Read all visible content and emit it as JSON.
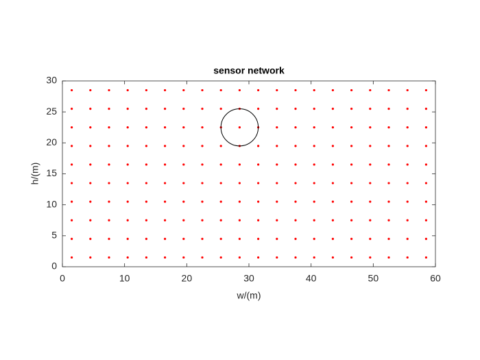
{
  "chart_data": {
    "type": "scatter",
    "title": "sensor network",
    "x_label": "w/(m)",
    "y_label": "h/(m)",
    "xlim": [
      0,
      60
    ],
    "xticks": [
      0,
      10,
      20,
      30,
      40,
      50,
      60
    ],
    "ylim": [
      0,
      30
    ],
    "yticks": [
      0,
      5,
      10,
      15,
      20,
      25,
      30
    ],
    "grid": false,
    "series": [
      {
        "color": "#ff0000",
        "x": [
          1.5,
          4.5,
          7.5,
          10.5,
          13.5,
          16.5,
          19.5,
          22.5,
          25.5,
          28.5,
          31.5,
          34.5,
          37.5,
          40.5,
          43.5,
          46.5,
          49.5,
          52.5,
          55.5,
          58.5,
          1.5,
          4.5,
          7.5,
          10.5,
          13.5,
          16.5,
          19.5,
          22.5,
          25.5,
          28.5,
          31.5,
          34.5,
          37.5,
          40.5,
          43.5,
          46.5,
          49.5,
          52.5,
          55.5,
          58.5,
          1.5,
          4.5,
          7.5,
          10.5,
          13.5,
          16.5,
          19.5,
          22.5,
          25.5,
          28.5,
          31.5,
          34.5,
          37.5,
          40.5,
          43.5,
          46.5,
          49.5,
          52.5,
          55.5,
          58.5,
          1.5,
          4.5,
          7.5,
          10.5,
          13.5,
          16.5,
          19.5,
          22.5,
          25.5,
          28.5,
          31.5,
          34.5,
          37.5,
          40.5,
          43.5,
          46.5,
          49.5,
          52.5,
          55.5,
          58.5,
          1.5,
          4.5,
          7.5,
          10.5,
          13.5,
          16.5,
          19.5,
          22.5,
          25.5,
          28.5,
          31.5,
          34.5,
          37.5,
          40.5,
          43.5,
          46.5,
          49.5,
          52.5,
          55.5,
          58.5,
          1.5,
          4.5,
          7.5,
          10.5,
          13.5,
          16.5,
          19.5,
          22.5,
          25.5,
          28.5,
          31.5,
          34.5,
          37.5,
          40.5,
          43.5,
          46.5,
          49.5,
          52.5,
          55.5,
          58.5,
          1.5,
          4.5,
          7.5,
          10.5,
          13.5,
          16.5,
          19.5,
          22.5,
          25.5,
          28.5,
          31.5,
          34.5,
          37.5,
          40.5,
          43.5,
          46.5,
          49.5,
          52.5,
          55.5,
          58.5,
          1.5,
          4.5,
          7.5,
          10.5,
          13.5,
          16.5,
          19.5,
          22.5,
          25.5,
          28.5,
          31.5,
          34.5,
          37.5,
          40.5,
          43.5,
          46.5,
          49.5,
          52.5,
          55.5,
          58.5,
          1.5,
          4.5,
          7.5,
          10.5,
          13.5,
          16.5,
          19.5,
          22.5,
          25.5,
          28.5,
          31.5,
          34.5,
          37.5,
          40.5,
          43.5,
          46.5,
          49.5,
          52.5,
          55.5,
          58.5,
          1.5,
          4.5,
          7.5,
          10.5,
          13.5,
          16.5,
          19.5,
          22.5,
          25.5,
          28.5,
          31.5,
          34.5,
          37.5,
          40.5,
          43.5,
          46.5,
          49.5,
          52.5,
          55.5,
          58.5
        ],
        "y": [
          1.5,
          1.5,
          1.5,
          1.5,
          1.5,
          1.5,
          1.5,
          1.5,
          1.5,
          1.5,
          1.5,
          1.5,
          1.5,
          1.5,
          1.5,
          1.5,
          1.5,
          1.5,
          1.5,
          1.5,
          4.5,
          4.5,
          4.5,
          4.5,
          4.5,
          4.5,
          4.5,
          4.5,
          4.5,
          4.5,
          4.5,
          4.5,
          4.5,
          4.5,
          4.5,
          4.5,
          4.5,
          4.5,
          4.5,
          4.5,
          7.5,
          7.5,
          7.5,
          7.5,
          7.5,
          7.5,
          7.5,
          7.5,
          7.5,
          7.5,
          7.5,
          7.5,
          7.5,
          7.5,
          7.5,
          7.5,
          7.5,
          7.5,
          7.5,
          7.5,
          10.5,
          10.5,
          10.5,
          10.5,
          10.5,
          10.5,
          10.5,
          10.5,
          10.5,
          10.5,
          10.5,
          10.5,
          10.5,
          10.5,
          10.5,
          10.5,
          10.5,
          10.5,
          10.5,
          10.5,
          13.5,
          13.5,
          13.5,
          13.5,
          13.5,
          13.5,
          13.5,
          13.5,
          13.5,
          13.5,
          13.5,
          13.5,
          13.5,
          13.5,
          13.5,
          13.5,
          13.5,
          13.5,
          13.5,
          13.5,
          16.5,
          16.5,
          16.5,
          16.5,
          16.5,
          16.5,
          16.5,
          16.5,
          16.5,
          16.5,
          16.5,
          16.5,
          16.5,
          16.5,
          16.5,
          16.5,
          16.5,
          16.5,
          16.5,
          16.5,
          19.5,
          19.5,
          19.5,
          19.5,
          19.5,
          19.5,
          19.5,
          19.5,
          19.5,
          19.5,
          19.5,
          19.5,
          19.5,
          19.5,
          19.5,
          19.5,
          19.5,
          19.5,
          19.5,
          19.5,
          22.5,
          22.5,
          22.5,
          22.5,
          22.5,
          22.5,
          22.5,
          22.5,
          22.5,
          22.5,
          22.5,
          22.5,
          22.5,
          22.5,
          22.5,
          22.5,
          22.5,
          22.5,
          22.5,
          22.5,
          25.5,
          25.5,
          25.5,
          25.5,
          25.5,
          25.5,
          25.5,
          25.5,
          25.5,
          25.5,
          25.5,
          25.5,
          25.5,
          25.5,
          25.5,
          25.5,
          25.5,
          25.5,
          25.5,
          25.5,
          28.5,
          28.5,
          28.5,
          28.5,
          28.5,
          28.5,
          28.5,
          28.5,
          28.5,
          28.5,
          28.5,
          28.5,
          28.5,
          28.5,
          28.5,
          28.5,
          28.5,
          28.5,
          28.5,
          28.5
        ]
      }
    ],
    "circle": {
      "x": 28.5,
      "y": 22.5,
      "r": 3,
      "color": "#000000"
    }
  }
}
